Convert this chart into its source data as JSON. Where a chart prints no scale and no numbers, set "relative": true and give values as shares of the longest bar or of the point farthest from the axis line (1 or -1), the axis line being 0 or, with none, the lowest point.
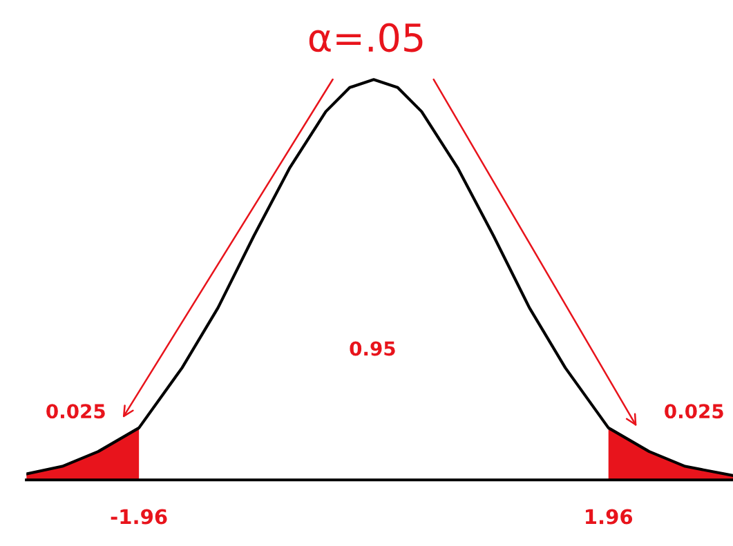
{
  "chart_data": {
    "type": "line",
    "title": "α=.05",
    "relative": true,
    "tick_labels": "x",
    "grid": false,
    "marker": "none",
    "line_style": "solid",
    "xlim": [
      -2.9,
      3.0
    ],
    "xticks": [
      -1.96,
      1.96
    ],
    "series": [
      {
        "color": "#000000",
        "x": [
          -2.9,
          -2.6,
          -2.3,
          -1.96,
          -1.6,
          -1.3,
          -1.0,
          -0.7,
          -0.4,
          -0.2,
          0,
          0.2,
          0.4,
          0.7,
          1.0,
          1.3,
          1.6,
          1.96,
          2.3,
          2.6,
          3.0
        ],
        "values": [
          0.015,
          0.034,
          0.071,
          0.13,
          0.28,
          0.43,
          0.61,
          0.78,
          0.92,
          0.98,
          1,
          0.98,
          0.92,
          0.78,
          0.61,
          0.43,
          0.28,
          0.13,
          0.071,
          0.034,
          0.011
        ]
      },
      {
        "type": "area",
        "color": "#e8141c",
        "x": [
          -2.9,
          -2.6,
          -2.3,
          -1.96
        ],
        "values": [
          0.015,
          0.034,
          0.071,
          0.13
        ]
      },
      {
        "type": "area",
        "color": "#e8141c",
        "x": [
          1.96,
          2.3,
          2.6,
          3.0
        ],
        "values": [
          0.13,
          0.071,
          0.034,
          0.011
        ]
      }
    ],
    "annotations": [
      "0.95",
      "0.025",
      "0.025"
    ]
  }
}
